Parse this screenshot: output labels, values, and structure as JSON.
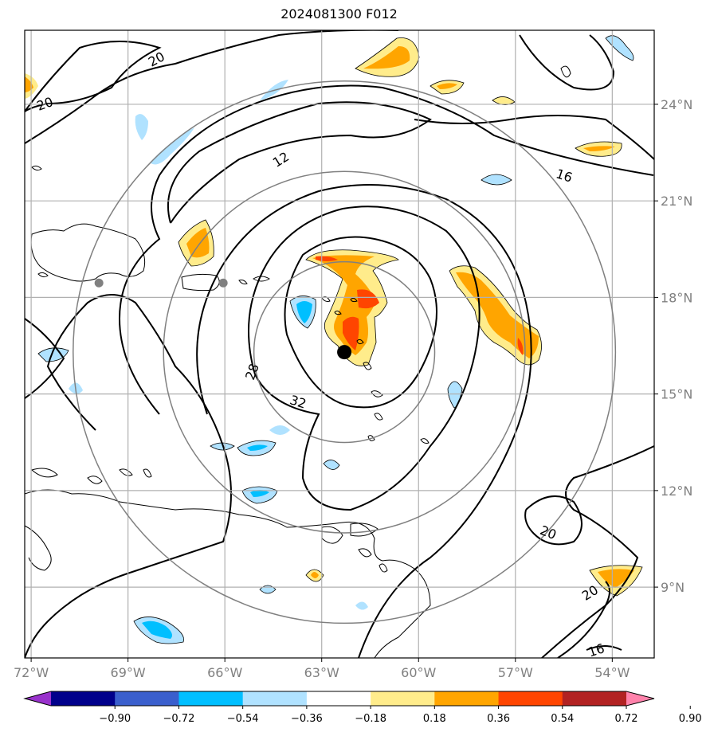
{
  "title": "2024081300 F012",
  "chart_data": {
    "type": "map",
    "title": "2024081300 F012",
    "lon_range": [
      -72.2,
      -52.7
    ],
    "lat_range": [
      6.8,
      26.3
    ],
    "x_ticks": [
      -72,
      -69,
      -66,
      -63,
      -60,
      -57,
      -54
    ],
    "x_tick_labels": [
      "72°W",
      "69°W",
      "66°W",
      "63°W",
      "60°W",
      "57°W",
      "54°W"
    ],
    "y_ticks": [
      9,
      12,
      15,
      18,
      21,
      24
    ],
    "y_tick_labels": [
      "9°N",
      "12°N",
      "15°N",
      "18°N",
      "21°N",
      "24°N"
    ],
    "grid": true,
    "storm_center": {
      "lon": -62.3,
      "lat": 16.3
    },
    "range_rings": [
      {
        "radius_deg": 2.8
      },
      {
        "radius_deg": 5.6
      },
      {
        "radius_deg": 8.4
      }
    ],
    "city_markers": [
      {
        "lon": -69.9,
        "lat": 18.45
      },
      {
        "lon": -66.05,
        "lat": 18.45
      }
    ],
    "contour_labels": [
      "20",
      "20",
      "12",
      "16",
      "28",
      "32",
      "20",
      "20",
      "16"
    ],
    "colorbar": {
      "ticks": [
        -0.9,
        -0.72,
        -0.54,
        -0.36,
        -0.18,
        0.18,
        0.36,
        0.54,
        0.72,
        0.9
      ],
      "tick_labels": [
        "−0.90",
        "−0.72",
        "−0.54",
        "−0.36",
        "−0.18",
        "0.18",
        "0.36",
        "0.54",
        "0.72",
        "0.90"
      ],
      "colors": [
        "#9932cc",
        "#00008b",
        "#3a5fcd",
        "#00bfff",
        "#b0e2ff",
        "#ffffff",
        "#ffec8b",
        "#ffa500",
        "#ff4500",
        "#b22222",
        "#ff82ab"
      ],
      "extend": "both"
    },
    "shaded_regions": [
      {
        "lon": -61.0,
        "lat": 17.5,
        "level": 0.54
      },
      {
        "lon": -57.0,
        "lat": 17.0,
        "level": 0.54
      },
      {
        "lon": -67.0,
        "lat": 19.5,
        "level": 0.54
      },
      {
        "lon": -60.0,
        "lat": 25.5,
        "level": 0.36
      },
      {
        "lon": -54.0,
        "lat": 8.9,
        "level": 0.54
      },
      {
        "lon": -68.3,
        "lat": 7.6,
        "level": -0.36
      },
      {
        "lon": -64.4,
        "lat": 12.2,
        "level": -0.36
      },
      {
        "lon": -63.6,
        "lat": 17.5,
        "level": -0.36
      },
      {
        "lon": -64.0,
        "lat": 14.0,
        "level": -0.36
      }
    ]
  }
}
